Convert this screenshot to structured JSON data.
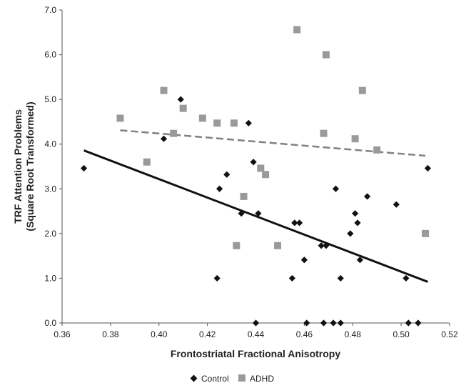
{
  "chart_data": {
    "type": "scatter",
    "title": "",
    "xlabel": "Frontostriatal Fractional Anisotropy",
    "ylabel_lines": [
      "TRF Attention Problems",
      "(Square Root Transformed)"
    ],
    "xlim": [
      0.36,
      0.52
    ],
    "ylim": [
      0.0,
      7.0
    ],
    "x_ticks": [
      0.36,
      0.38,
      0.4,
      0.42,
      0.44,
      0.46,
      0.48,
      0.5,
      0.52
    ],
    "x_tick_labels": [
      "0.36",
      "0.38",
      "0.40",
      "0.42",
      "0.44",
      "0.46",
      "0.48",
      "0.50",
      "0.52"
    ],
    "y_ticks": [
      0,
      1,
      2,
      3,
      4,
      5,
      6,
      7
    ],
    "y_tick_labels": [
      "0.0",
      "1.0",
      "2.0",
      "3.0",
      "4.0",
      "5.0",
      "6.0",
      "7.0"
    ],
    "grid": false,
    "legend_position": "bottom-center",
    "series": [
      {
        "name": "Control",
        "marker": "diamond",
        "color": "#111111",
        "points": [
          [
            0.369,
            3.46
          ],
          [
            0.402,
            4.12
          ],
          [
            0.409,
            5.0
          ],
          [
            0.424,
            1.0
          ],
          [
            0.425,
            3.0
          ],
          [
            0.428,
            3.32
          ],
          [
            0.434,
            2.45
          ],
          [
            0.437,
            4.47
          ],
          [
            0.439,
            3.6
          ],
          [
            0.44,
            0.0
          ],
          [
            0.441,
            2.45
          ],
          [
            0.455,
            1.0
          ],
          [
            0.456,
            2.24
          ],
          [
            0.458,
            2.24
          ],
          [
            0.46,
            1.41
          ],
          [
            0.461,
            0.0
          ],
          [
            0.467,
            1.73
          ],
          [
            0.468,
            0.0
          ],
          [
            0.469,
            1.73
          ],
          [
            0.472,
            0.0
          ],
          [
            0.473,
            3.0
          ],
          [
            0.475,
            0.0
          ],
          [
            0.475,
            1.0
          ],
          [
            0.479,
            2.0
          ],
          [
            0.481,
            2.45
          ],
          [
            0.482,
            2.24
          ],
          [
            0.483,
            1.41
          ],
          [
            0.486,
            2.83
          ],
          [
            0.498,
            2.65
          ],
          [
            0.502,
            1.0
          ],
          [
            0.503,
            0.0
          ],
          [
            0.507,
            0.0
          ],
          [
            0.511,
            3.46
          ]
        ],
        "fit": {
          "style": "solid",
          "x": [
            0.369,
            0.511
          ],
          "y": [
            3.86,
            0.92
          ]
        }
      },
      {
        "name": "ADHD",
        "marker": "square",
        "color": "#9a9a9a",
        "points": [
          [
            0.384,
            4.58
          ],
          [
            0.395,
            3.6
          ],
          [
            0.402,
            5.2
          ],
          [
            0.406,
            4.24
          ],
          [
            0.41,
            4.8
          ],
          [
            0.418,
            4.58
          ],
          [
            0.424,
            4.47
          ],
          [
            0.431,
            4.47
          ],
          [
            0.432,
            1.73
          ],
          [
            0.435,
            2.83
          ],
          [
            0.442,
            3.46
          ],
          [
            0.444,
            3.32
          ],
          [
            0.449,
            1.73
          ],
          [
            0.457,
            6.56
          ],
          [
            0.468,
            4.24
          ],
          [
            0.469,
            6.0
          ],
          [
            0.481,
            4.12
          ],
          [
            0.484,
            5.2
          ],
          [
            0.49,
            3.87
          ],
          [
            0.51,
            2.0
          ]
        ],
        "fit": {
          "style": "dashed",
          "x": [
            0.384,
            0.51
          ],
          "y": [
            4.31,
            3.74
          ]
        }
      }
    ]
  }
}
